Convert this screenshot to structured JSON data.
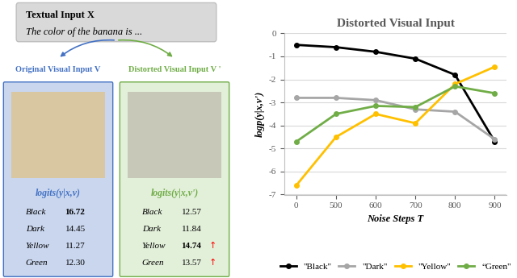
{
  "diagram": {
    "text_input": {
      "title": "Textual Input X",
      "text": "The color of the banana is ..."
    },
    "panels": [
      {
        "title": "Original Visual Input V",
        "color": "#4472c4",
        "fill": "#c9d6ee",
        "logits_title": "logits(y|x,v)",
        "rows": [
          {
            "label": "Black",
            "value": "16.72",
            "highlight": true
          },
          {
            "label": "Dark",
            "value": "14.45"
          },
          {
            "label": "Yellow",
            "value": "11.27"
          },
          {
            "label": "Green",
            "value": "12.30"
          }
        ]
      },
      {
        "title": "Distorted Visual Input V '",
        "color": "#70ad47",
        "fill": "#e2efd9",
        "logits_title": "logits(y|x,v')",
        "rows": [
          {
            "label": "Black",
            "value": "12.57"
          },
          {
            "label": "Dark",
            "value": "11.84"
          },
          {
            "label": "Yellow",
            "value": "14.74",
            "highlight": true,
            "change": "↑"
          },
          {
            "label": "Green",
            "value": "13.57",
            "change": "↑"
          }
        ]
      }
    ]
  },
  "chart_data": {
    "type": "line",
    "title": "Distorted Visual Input",
    "x_label": "Noise Steps T",
    "y_label": "logp(y|x,v')",
    "categories": [
      "0",
      "500",
      "600",
      "700",
      "800",
      "900"
    ],
    "ylim": [
      -7,
      0
    ],
    "yticks": [
      -7,
      -6,
      -5,
      -4,
      -3,
      -2,
      -1,
      0
    ],
    "grid": true,
    "legend": "lower center",
    "marker": "o",
    "series": [
      {
        "name": "\"Black\"",
        "color": "#000000",
        "values": [
          -0.5,
          -0.6,
          -0.8,
          -1.1,
          -1.8,
          -4.7
        ]
      },
      {
        "name": "\"Dark\"",
        "color": "#a6a6a6",
        "values": [
          -2.8,
          -2.8,
          -2.9,
          -3.3,
          -3.4,
          -4.6
        ]
      },
      {
        "name": "\"Yellow\"",
        "color": "#ffc000",
        "values": [
          -6.6,
          -4.5,
          -3.5,
          -3.9,
          -2.2,
          -1.45
        ]
      },
      {
        "name": "“Green\"",
        "color": "#70ad47",
        "values": [
          -4.7,
          -3.5,
          -3.15,
          -3.2,
          -2.3,
          -2.6
        ]
      }
    ]
  }
}
